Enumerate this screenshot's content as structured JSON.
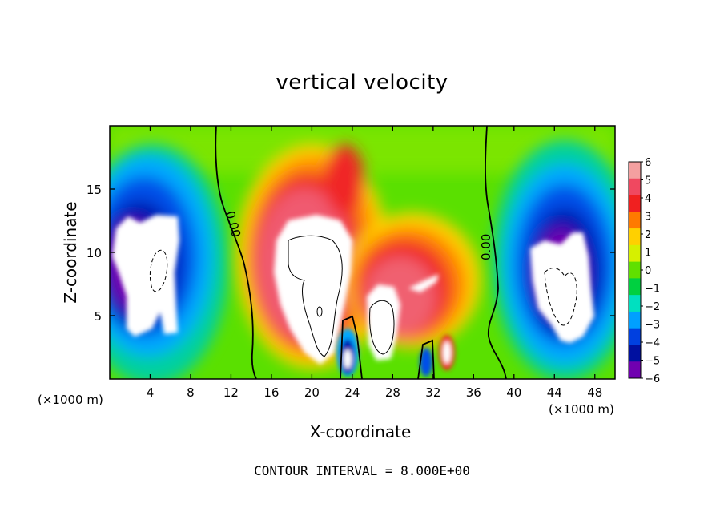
{
  "chart_data": {
    "type": "heatmap",
    "title": "vertical velocity",
    "xlabel": "X-coordinate",
    "ylabel": "Z-coordinate",
    "x_unit": "(×1000 m)",
    "z_unit": "(×1000 m)",
    "xlim": [
      0,
      50
    ],
    "ylim": [
      0,
      20
    ],
    "x_ticks": [
      4,
      8,
      12,
      16,
      20,
      24,
      28,
      32,
      36,
      40,
      44,
      48
    ],
    "y_ticks": [
      5,
      10,
      15
    ],
    "colorbar": {
      "levels": [
        6,
        5,
        4,
        3,
        2,
        1,
        0,
        -1,
        -2,
        -3,
        -4,
        -5,
        -6
      ],
      "labels": [
        "6",
        "5",
        "4",
        "3",
        "2",
        "1",
        "0",
        "−1",
        "−2",
        "−3",
        "−4",
        "−5",
        "−6"
      ],
      "colors": [
        "#f4a0a0",
        "#f04860",
        "#f02020",
        "#ff7a00",
        "#ffd000",
        "#d6f000",
        "#60e000",
        "#00d040",
        "#00e0c0",
        "#00a0ff",
        "#0040e0",
        "#0010a0",
        "#7000b0"
      ]
    },
    "contour_labels": [
      "0.00",
      "0.00"
    ],
    "footer": "CONTOUR INTERVAL = 8.000E+00",
    "grid": false,
    "legend_position": "right"
  }
}
